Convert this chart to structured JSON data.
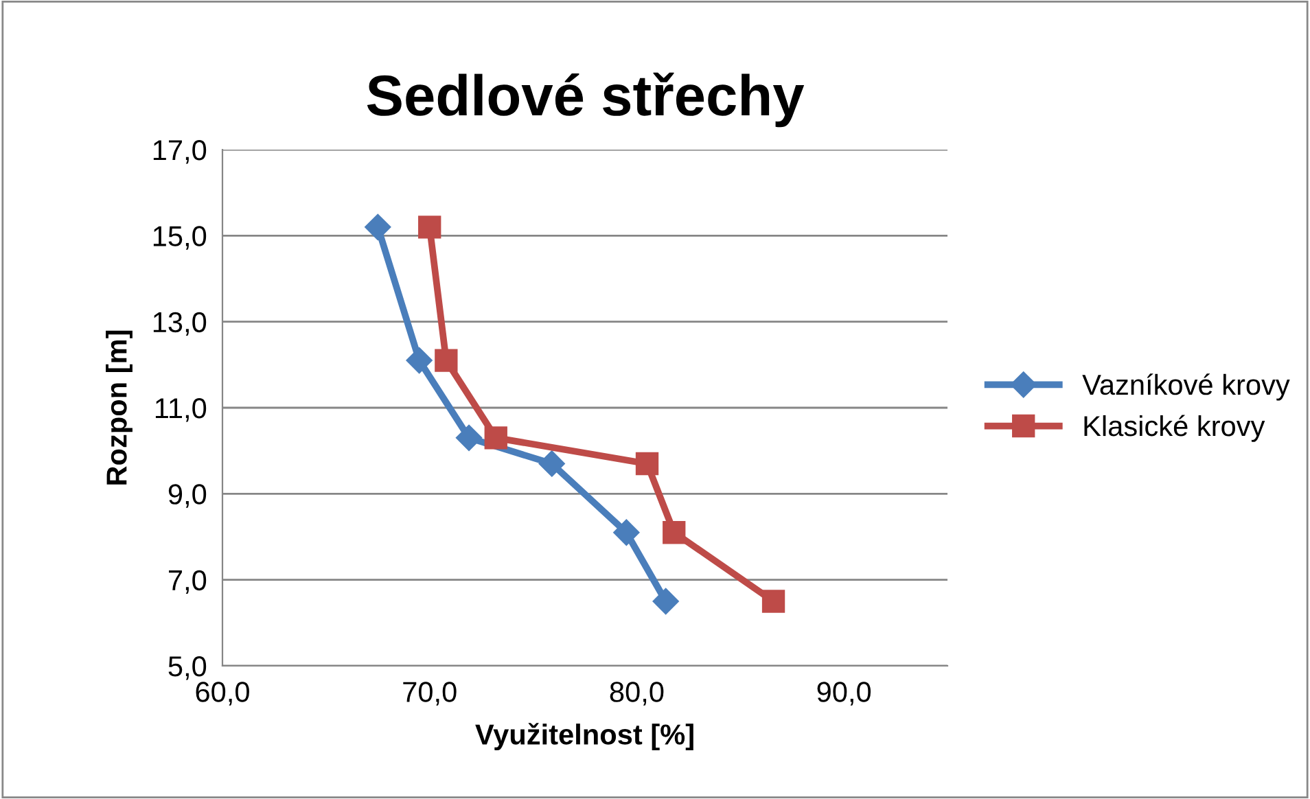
{
  "chart_data": {
    "type": "line",
    "title": "Sedlové střechy",
    "xlabel": "Využitelnost [%]",
    "ylabel": "Rozpon [m]",
    "series": [
      {
        "name": "Vazníkové krovy",
        "color": "#4a7ebb",
        "marker": "diamond",
        "x": [
          67.5,
          69.5,
          71.9,
          75.9,
          79.5,
          81.4
        ],
        "values": [
          15.2,
          12.1,
          10.3,
          9.7,
          8.1,
          6.5
        ]
      },
      {
        "name": "Klasické krovy",
        "color": "#be4b48",
        "marker": "square",
        "x": [
          70.0,
          70.8,
          73.2,
          80.5,
          81.8,
          86.6
        ],
        "values": [
          15.2,
          12.1,
          10.3,
          9.7,
          8.1,
          6.5
        ]
      }
    ],
    "xlim": [
      60,
      95
    ],
    "xticks": [
      {
        "value": 60,
        "label": "60,0"
      },
      {
        "value": 70,
        "label": "70,0"
      },
      {
        "value": 80,
        "label": "80,0"
      },
      {
        "value": 90,
        "label": "90,0"
      }
    ],
    "ylim": [
      5,
      17
    ],
    "yticks": [
      {
        "value": 5,
        "label": "5,0"
      },
      {
        "value": 7,
        "label": "7,0"
      },
      {
        "value": 9,
        "label": "9,0"
      },
      {
        "value": 11,
        "label": "11,0"
      },
      {
        "value": 13,
        "label": "13,0"
      },
      {
        "value": 15,
        "label": "15,0"
      },
      {
        "value": 17,
        "label": "17,0"
      }
    ],
    "grid": "y",
    "legend": "right",
    "line_style": "solid"
  }
}
